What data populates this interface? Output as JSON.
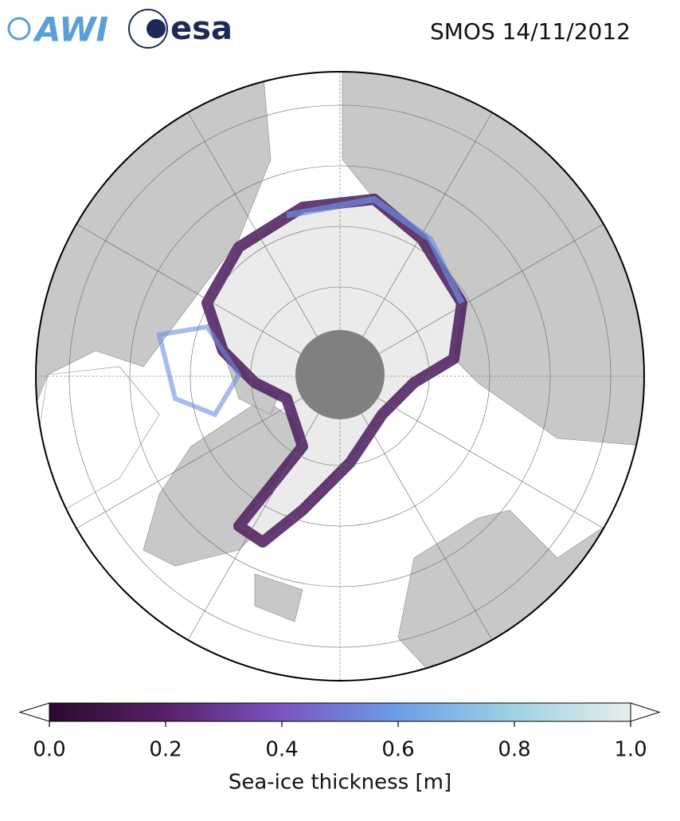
{
  "header": {
    "logos": [
      "AWI",
      "esa"
    ],
    "title": "SMOS 14/11/2012"
  },
  "colorbar": {
    "label": "Sea-ice thickness [m]",
    "lim": [
      0,
      1
    ],
    "ticks": [
      {
        "value": 0,
        "label": "0.0"
      },
      {
        "value": 0.2,
        "label": "0.2"
      },
      {
        "value": 0.4,
        "label": "0.4"
      },
      {
        "value": 0.6,
        "label": "0.6"
      },
      {
        "value": 0.8,
        "label": "0.8"
      },
      {
        "value": 1,
        "label": "1.0"
      }
    ],
    "colors": [
      "#2a0a2e",
      "#5a1f6a",
      "#7a55c0",
      "#6c9ee6",
      "#9fd2e4",
      "#e6eeec"
    ]
  }
}
